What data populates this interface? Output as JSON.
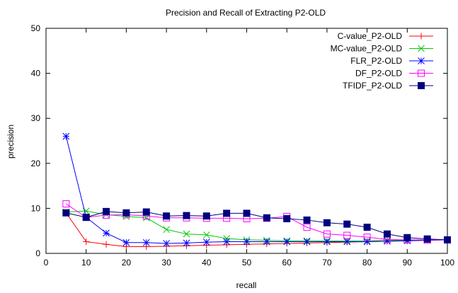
{
  "chart_data": {
    "type": "line",
    "title": "Precision and Recall of Extracting P2-OLD",
    "xlabel": "recall",
    "ylabel": "precision",
    "xlim": [
      0,
      100
    ],
    "ylim": [
      0,
      50
    ],
    "xticks": [
      0,
      10,
      20,
      30,
      40,
      50,
      60,
      70,
      80,
      90,
      100
    ],
    "yticks": [
      0,
      10,
      20,
      30,
      40,
      50
    ],
    "legend_position": "top-right",
    "grid": false,
    "x": [
      5,
      10,
      15,
      20,
      25,
      30,
      35,
      40,
      45,
      50,
      55,
      60,
      65,
      70,
      75,
      80,
      85,
      90,
      95,
      100
    ],
    "series": [
      {
        "name": "C-value_P2-OLD",
        "color": "#ff0000",
        "marker": "plus",
        "values": [
          9.0,
          2.6,
          2.0,
          1.5,
          1.5,
          1.6,
          1.7,
          1.8,
          1.9,
          2.0,
          2.1,
          2.2,
          2.3,
          2.4,
          2.5,
          2.6,
          2.7,
          2.8,
          2.9,
          3.0
        ]
      },
      {
        "name": "MC-value_P2-OLD",
        "color": "#00cc00",
        "marker": "x",
        "values": [
          9.2,
          9.4,
          8.6,
          8.2,
          7.9,
          5.3,
          4.3,
          4.1,
          3.3,
          3.0,
          2.9,
          2.8,
          2.8,
          2.8,
          2.8,
          2.8,
          2.9,
          2.9,
          3.0,
          3.0
        ]
      },
      {
        "name": "FLR_P2-OLD",
        "color": "#0000ff",
        "marker": "star",
        "values": [
          26.0,
          8.0,
          4.5,
          2.4,
          2.4,
          2.2,
          2.3,
          2.5,
          2.6,
          2.6,
          2.6,
          2.6,
          2.6,
          2.6,
          2.6,
          2.6,
          2.7,
          2.8,
          2.9,
          3.0
        ]
      },
      {
        "name": "DF_P2-OLD",
        "color": "#ff00ff",
        "marker": "square-open",
        "values": [
          11.0,
          8.0,
          8.5,
          8.6,
          8.3,
          7.9,
          7.9,
          7.8,
          7.8,
          7.7,
          7.8,
          8.2,
          5.8,
          4.3,
          4.0,
          3.6,
          3.1,
          3.0,
          3.0,
          3.0
        ]
      },
      {
        "name": "TFIDF_P2-OLD",
        "color": "#00007f",
        "marker": "square-filled",
        "values": [
          9.0,
          8.0,
          9.3,
          9.0,
          9.2,
          8.3,
          8.4,
          8.3,
          8.9,
          8.9,
          7.9,
          7.7,
          7.4,
          6.8,
          6.5,
          5.8,
          4.3,
          3.5,
          3.2,
          3.0
        ]
      }
    ]
  }
}
